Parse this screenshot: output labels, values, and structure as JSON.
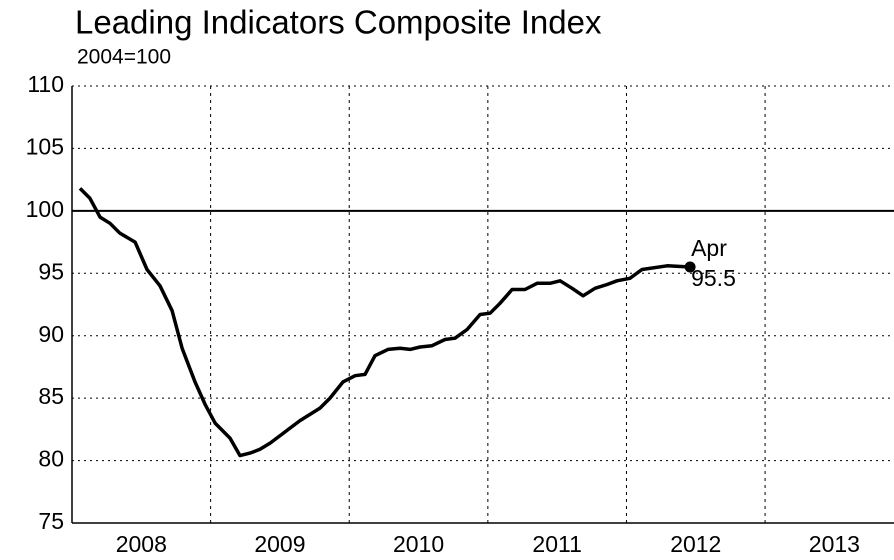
{
  "chart_data": {
    "type": "line",
    "title": "Leading Indicators Composite Index",
    "subtitle": "2004=100",
    "x": [
      2008.058,
      2008.13,
      2008.202,
      2008.274,
      2008.346,
      2008.455,
      2008.541,
      2008.635,
      2008.722,
      2008.794,
      2008.887,
      2008.96,
      2009.032,
      2009.14,
      2009.212,
      2009.284,
      2009.356,
      2009.429,
      2009.501,
      2009.573,
      2009.645,
      2009.717,
      2009.789,
      2009.861,
      2009.955,
      2010.042,
      2010.114,
      2010.186,
      2010.28,
      2010.367,
      2010.439,
      2010.511,
      2010.597,
      2010.691,
      2010.763,
      2010.85,
      2010.944,
      2011.016,
      2011.088,
      2011.175,
      2011.268,
      2011.355,
      2011.449,
      2011.521,
      2011.608,
      2011.687,
      2011.773,
      2011.86,
      2011.932,
      2012.025,
      2012.112,
      2012.294,
      2012.459
    ],
    "series": [
      {
        "name": "Leading Indicators Composite Index",
        "color": "#000000",
        "values": [
          101.8,
          101,
          99.5,
          99,
          98.2,
          97.5,
          95.3,
          94,
          92,
          89,
          86.3,
          84.5,
          83,
          81.8,
          80.4,
          80.6,
          80.9,
          81.4,
          82,
          82.6,
          83.2,
          83.7,
          84.2,
          85,
          86.3,
          86.8,
          86.9,
          88.4,
          88.9,
          89,
          88.9,
          89.1,
          89.2,
          89.7,
          89.8,
          90.5,
          91.7,
          91.8,
          92.6,
          93.7,
          93.7,
          94.2,
          94.2,
          94.4,
          93.8,
          93.2,
          93.8,
          94.1,
          94.4,
          94.6,
          95.3,
          95.6,
          95.5
        ]
      }
    ],
    "xlim": [
      2008,
      2013.93
    ],
    "xticks": [
      2009,
      2010,
      2011,
      2012,
      2013
    ],
    "x_labels": [
      {
        "value": 2008.5,
        "label": "2008"
      },
      {
        "value": 2009.5,
        "label": "2009"
      },
      {
        "value": 2010.5,
        "label": "2010"
      },
      {
        "value": 2011.5,
        "label": "2011"
      },
      {
        "value": 2012.5,
        "label": "2012"
      },
      {
        "value": 2013.5,
        "label": "2013"
      }
    ],
    "ylim": [
      75,
      110
    ],
    "yticks": [
      75,
      80,
      85,
      90,
      95,
      100,
      105,
      110
    ],
    "reference_line": 100,
    "grid": true,
    "annotation": [
      "Apr",
      "95.5"
    ]
  }
}
